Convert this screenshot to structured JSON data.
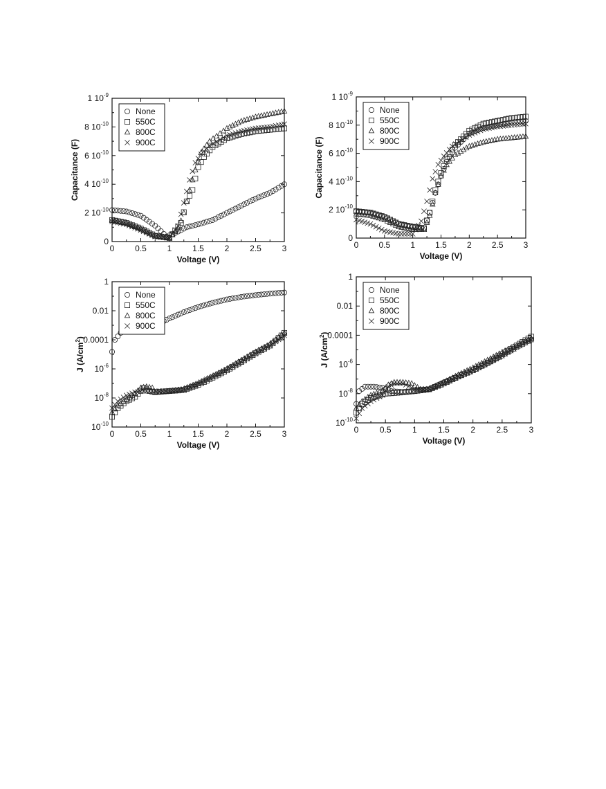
{
  "chart_data": [
    {
      "type": "scatter",
      "xlabel": "Voltage (V)",
      "ylabel": "Capacitance (F)",
      "xlim": [
        0,
        3
      ],
      "ylim": [
        0,
        1e-09
      ],
      "yscale": "linear",
      "grid": false,
      "legend_position": "top-left",
      "x_ticks": [
        "0",
        "0.5",
        "1",
        "1.5",
        "2",
        "2.5",
        "3"
      ],
      "y_ticks": [
        {
          "base": "0",
          "exp": ""
        },
        {
          "base": "2 10",
          "exp": "-10"
        },
        {
          "base": "4 10",
          "exp": "-10"
        },
        {
          "base": "6 10",
          "exp": "-10"
        },
        {
          "base": "8 10",
          "exp": "-10"
        },
        {
          "base": "1 10",
          "exp": "-9"
        }
      ],
      "series": [
        {
          "name": "None",
          "marker": "circle",
          "x": [
            0,
            0.25,
            0.5,
            0.75,
            0.95,
            1.1,
            1.3,
            1.5,
            1.75,
            2.0,
            2.25,
            2.5,
            2.75,
            3.0
          ],
          "y": [
            2.2e-10,
            2.1e-10,
            1.8e-10,
            1.1e-10,
            3.5e-11,
            6e-11,
            1e-10,
            1.2e-10,
            1.5e-10,
            2e-10,
            2.5e-10,
            3e-10,
            3.4e-10,
            4e-10
          ]
        },
        {
          "name": "550C",
          "marker": "square",
          "x": [
            0,
            0.25,
            0.5,
            0.75,
            1.0,
            1.2,
            1.3,
            1.4,
            1.5,
            1.6,
            1.75,
            2.0,
            2.25,
            2.5,
            2.75,
            3.0
          ],
          "y": [
            1.5e-10,
            1.3e-10,
            9e-11,
            4e-11,
            2.5e-11,
            1.3e-10,
            2.8e-10,
            3.6e-10,
            5.2e-10,
            5.9e-10,
            6.6e-10,
            7.2e-10,
            7.5e-10,
            7.7e-10,
            7.8e-10,
            7.9e-10
          ]
        },
        {
          "name": "800C",
          "marker": "triangle",
          "x": [
            0,
            0.25,
            0.5,
            0.75,
            1.0,
            1.15,
            1.25,
            1.35,
            1.45,
            1.55,
            1.7,
            2.0,
            2.25,
            2.5,
            2.75,
            3.0
          ],
          "y": [
            1.5e-10,
            1.3e-10,
            9e-11,
            4e-11,
            2.5e-11,
            9e-11,
            2e-10,
            3.6e-10,
            5e-10,
            6.2e-10,
            7e-10,
            7.9e-10,
            8.4e-10,
            8.7e-10,
            8.9e-10,
            9.1e-10
          ]
        },
        {
          "name": "900C",
          "marker": "x",
          "x": [
            0,
            0.25,
            0.5,
            0.75,
            1.0,
            1.15,
            1.25,
            1.35,
            1.45,
            1.55,
            1.7,
            2.0,
            2.25,
            2.5,
            2.75,
            3.0
          ],
          "y": [
            1.4e-10,
            1.2e-10,
            8e-11,
            3.5e-11,
            2.5e-11,
            1.1e-10,
            2.7e-10,
            4.3e-10,
            5.5e-10,
            6.1e-10,
            6.7e-10,
            7.4e-10,
            7.7e-10,
            7.9e-10,
            8e-10,
            8.2e-10
          ]
        }
      ]
    },
    {
      "type": "scatter",
      "xlabel": "Voltage (V)",
      "ylabel": "Capacitance (F)",
      "xlim": [
        0,
        3
      ],
      "ylim": [
        0,
        1e-09
      ],
      "yscale": "linear",
      "grid": false,
      "legend_position": "top-left",
      "x_ticks": [
        "0",
        "0.5",
        "1",
        "1.5",
        "2",
        "2.5",
        "3"
      ],
      "y_ticks": [
        {
          "base": "0",
          "exp": ""
        },
        {
          "base": "2 10",
          "exp": "-10"
        },
        {
          "base": "4 10",
          "exp": "-10"
        },
        {
          "base": "6 10",
          "exp": "-10"
        },
        {
          "base": "8 10",
          "exp": "-10"
        },
        {
          "base": "1 10",
          "exp": "-9"
        }
      ],
      "series": [
        {
          "name": "None",
          "marker": "circle",
          "x": [
            0,
            0.25,
            0.5,
            0.75,
            1.0,
            1.2,
            1.3,
            1.4,
            1.5,
            1.6,
            1.75,
            2.0,
            2.25,
            2.5,
            2.75,
            3.0
          ],
          "y": [
            1.9e-10,
            1.8e-10,
            1.5e-10,
            1e-10,
            8e-11,
            7e-11,
            1.8e-10,
            3.2e-10,
            4.4e-10,
            5.4e-10,
            6.4e-10,
            7.4e-10,
            7.8e-10,
            8e-10,
            8.2e-10,
            8.3e-10
          ]
        },
        {
          "name": "550C",
          "marker": "square",
          "x": [
            0,
            0.25,
            0.5,
            0.75,
            1.0,
            1.2,
            1.3,
            1.4,
            1.5,
            1.6,
            1.75,
            2.0,
            2.25,
            2.5,
            2.75,
            3.0
          ],
          "y": [
            1.9e-10,
            1.8e-10,
            1.5e-10,
            1e-10,
            8e-11,
            7e-11,
            1.8e-10,
            3.4e-10,
            4.6e-10,
            5.6e-10,
            6.6e-10,
            7.6e-10,
            8.1e-10,
            8.3e-10,
            8.5e-10,
            8.6e-10
          ]
        },
        {
          "name": "800C",
          "marker": "triangle",
          "x": [
            0,
            0.25,
            0.5,
            0.75,
            1.0,
            1.2,
            1.3,
            1.4,
            1.5,
            1.6,
            1.75,
            2.0,
            2.25,
            2.5,
            2.75,
            3.0
          ],
          "y": [
            1.7e-10,
            1.6e-10,
            1.3e-10,
            8e-11,
            6e-11,
            6e-11,
            1.6e-10,
            3.2e-10,
            4.4e-10,
            5.2e-10,
            5.9e-10,
            6.5e-10,
            6.8e-10,
            7e-10,
            7.1e-10,
            7.2e-10
          ]
        },
        {
          "name": "900C",
          "marker": "x",
          "x": [
            0,
            0.25,
            0.5,
            0.75,
            1.0,
            1.15,
            1.25,
            1.35,
            1.45,
            1.55,
            1.7,
            2.0,
            2.25,
            2.5,
            2.75,
            3.0
          ],
          "y": [
            1.3e-10,
            1e-10,
            5e-11,
            3e-11,
            3e-11,
            1.2e-10,
            2.6e-10,
            4.2e-10,
            5.2e-10,
            5.8e-10,
            6.5e-10,
            7.3e-10,
            7.7e-10,
            7.9e-10,
            8e-10,
            8.1e-10
          ]
        }
      ]
    },
    {
      "type": "scatter",
      "xlabel": "Voltage (V)",
      "ylabel": "J (A/cm",
      "ylabel_sup": "2",
      "ylabel_tail": ")",
      "xlim": [
        0,
        3
      ],
      "ylim": [
        1e-10,
        1
      ],
      "yscale": "log",
      "grid": false,
      "legend_position": "top-left",
      "x_ticks": [
        "0",
        "0.5",
        "1",
        "1.5",
        "2",
        "2.5",
        "3"
      ],
      "y_ticks": [
        {
          "base": "10",
          "exp": "-10"
        },
        {
          "base": "10",
          "exp": "-8"
        },
        {
          "base": "10",
          "exp": "-6"
        },
        {
          "base": "0.0001",
          "exp": ""
        },
        {
          "base": "0.01",
          "exp": ""
        },
        {
          "base": "1",
          "exp": ""
        }
      ],
      "series": [
        {
          "name": "None",
          "marker": "circle",
          "x": [
            0,
            0.05,
            0.15,
            0.3,
            0.5,
            0.75,
            1.0,
            1.25,
            1.5,
            1.75,
            2.0,
            2.25,
            2.5,
            2.75,
            3.0
          ],
          "y": [
            1.5e-05,
            0.0001,
            0.0003,
            0.0005,
            0.0006,
            0.001,
            0.003,
            0.008,
            0.018,
            0.035,
            0.06,
            0.09,
            0.12,
            0.15,
            0.18
          ]
        },
        {
          "name": "550C",
          "marker": "square",
          "x": [
            0,
            0.1,
            0.25,
            0.4,
            0.55,
            0.65,
            0.75,
            1.0,
            1.25,
            1.5,
            1.75,
            2.0,
            2.25,
            2.5,
            2.75,
            3.0
          ],
          "y": [
            5e-10,
            2e-09,
            6e-09,
            1.2e-08,
            5e-08,
            3e-08,
            2.5e-08,
            3e-08,
            3.5e-08,
            8e-08,
            2.5e-07,
            8e-07,
            3e-06,
            1.2e-05,
            4e-05,
            0.0003
          ]
        },
        {
          "name": "800C",
          "marker": "triangle",
          "x": [
            0,
            0.1,
            0.25,
            0.4,
            0.5,
            0.6,
            0.7,
            0.75,
            1.0,
            1.25,
            1.5,
            1.75,
            2.0,
            2.25,
            2.5,
            2.75,
            3.0
          ],
          "y": [
            1e-09,
            3e-09,
            8e-09,
            2e-08,
            5e-08,
            6e-08,
            5e-08,
            2.5e-08,
            3e-08,
            4e-08,
            1e-07,
            3e-07,
            1e-06,
            4e-06,
            1.5e-05,
            5e-05,
            0.0003
          ]
        },
        {
          "name": "900C",
          "marker": "x",
          "x": [
            0,
            0.1,
            0.25,
            0.4,
            0.55,
            0.7,
            1.0,
            1.25,
            1.5,
            1.75,
            2.0,
            2.25,
            2.5,
            2.75,
            3.0
          ],
          "y": [
            2e-09,
            6e-09,
            1.5e-08,
            2.5e-08,
            3e-08,
            3e-08,
            3e-08,
            4e-08,
            1e-07,
            3e-07,
            9e-07,
            3e-06,
            1.1e-05,
            4e-05,
            0.0002
          ]
        }
      ]
    },
    {
      "type": "scatter",
      "xlabel": "Voltage (V)",
      "ylabel": "J (A/cm",
      "ylabel_sup": "2",
      "ylabel_tail": ")",
      "xlim": [
        0,
        3
      ],
      "ylim": [
        1e-10,
        1
      ],
      "yscale": "log",
      "grid": false,
      "legend_position": "top-left",
      "x_ticks": [
        "0",
        "0.5",
        "1",
        "1.5",
        "2",
        "2.5",
        "3"
      ],
      "y_ticks": [
        {
          "base": "10",
          "exp": "-10"
        },
        {
          "base": "10",
          "exp": "-8"
        },
        {
          "base": "10",
          "exp": "-6"
        },
        {
          "base": "0.0001",
          "exp": ""
        },
        {
          "base": "0.01",
          "exp": ""
        },
        {
          "base": "1",
          "exp": ""
        }
      ],
      "series": [
        {
          "name": "None",
          "marker": "circle",
          "x": [
            0,
            0.05,
            0.15,
            0.3,
            0.45,
            0.6,
            0.8,
            1.0,
            1.25,
            1.5,
            1.75,
            2.0,
            2.25,
            2.5,
            2.75,
            3.0
          ],
          "y": [
            2e-09,
            1.5e-08,
            3e-08,
            3e-08,
            2.5e-08,
            1.5e-08,
            1.3e-08,
            1.5e-08,
            2e-08,
            6e-08,
            1.5e-07,
            4e-07,
            1.2e-06,
            4e-06,
            1.5e-05,
            5e-05
          ]
        },
        {
          "name": "550C",
          "marker": "square",
          "x": [
            0,
            0.1,
            0.25,
            0.5,
            0.75,
            1.0,
            1.25,
            1.5,
            1.75,
            2.0,
            2.25,
            2.5,
            2.75,
            3.0
          ],
          "y": [
            5e-10,
            2e-09,
            5e-09,
            1e-08,
            1.2e-08,
            1.5e-08,
            2e-08,
            5e-08,
            1.5e-07,
            4e-07,
            1.3e-06,
            5e-06,
            2e-05,
            8e-05
          ]
        },
        {
          "name": "800C",
          "marker": "triangle",
          "x": [
            0,
            0.1,
            0.25,
            0.45,
            0.55,
            0.65,
            0.8,
            0.95,
            1.1,
            1.25,
            1.5,
            1.75,
            2.0,
            2.25,
            2.5,
            2.75,
            3.0
          ],
          "y": [
            1e-09,
            3e-09,
            8e-09,
            1.5e-08,
            4e-08,
            6e-08,
            6e-08,
            5e-08,
            2e-08,
            2e-08,
            6e-08,
            2e-07,
            6e-07,
            2e-06,
            7e-06,
            2e-05,
            6e-05
          ]
        },
        {
          "name": "900C",
          "marker": "x",
          "x": [
            0,
            0.1,
            0.25,
            0.45,
            0.55,
            0.65,
            0.8,
            1.0,
            1.25,
            1.5,
            1.75,
            2.0,
            2.25,
            2.5,
            2.75,
            3.0
          ],
          "y": [
            2e-10,
            1e-09,
            3e-09,
            8e-09,
            3e-08,
            5e-08,
            5e-08,
            2e-08,
            2e-08,
            5e-08,
            1.5e-07,
            4e-07,
            1.2e-06,
            4e-06,
            1.5e-05,
            5e-05
          ]
        }
      ]
    }
  ]
}
